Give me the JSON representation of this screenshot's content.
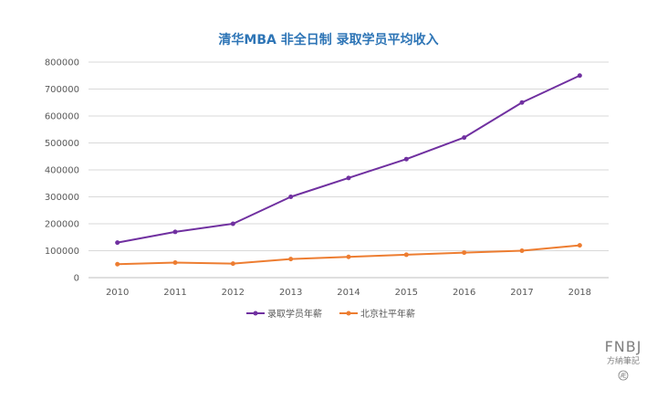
{
  "chart_data": {
    "type": "line",
    "title": "清华MBA 非全日制 录取学员平均收入",
    "categories": [
      "2010",
      "2011",
      "2012",
      "2013",
      "2014",
      "2015",
      "2016",
      "2017",
      "2018"
    ],
    "ylim": [
      0,
      800000
    ],
    "yticks": [
      0,
      100000,
      200000,
      300000,
      400000,
      500000,
      600000,
      700000,
      800000
    ],
    "ytick_labels": [
      "0",
      "100000",
      "200000",
      "300000",
      "400000",
      "500000",
      "600000",
      "700000",
      "800000"
    ],
    "grid": true,
    "legend_position": "bottom",
    "series": [
      {
        "name": "录取学员年薪",
        "color": "#7030a0",
        "values": [
          130000,
          170000,
          200000,
          300000,
          370000,
          440000,
          520000,
          650000,
          750000
        ]
      },
      {
        "name": "北京社平年薪",
        "color": "#ed7d31",
        "values": [
          50000,
          56000,
          52000,
          69000,
          77000,
          85000,
          93000,
          100000,
          120000
        ]
      }
    ]
  },
  "title_color": "#2e75b6",
  "watermark": {
    "brand": "FNBJ",
    "subtitle": "方納筆記",
    "seal": "Æ"
  }
}
